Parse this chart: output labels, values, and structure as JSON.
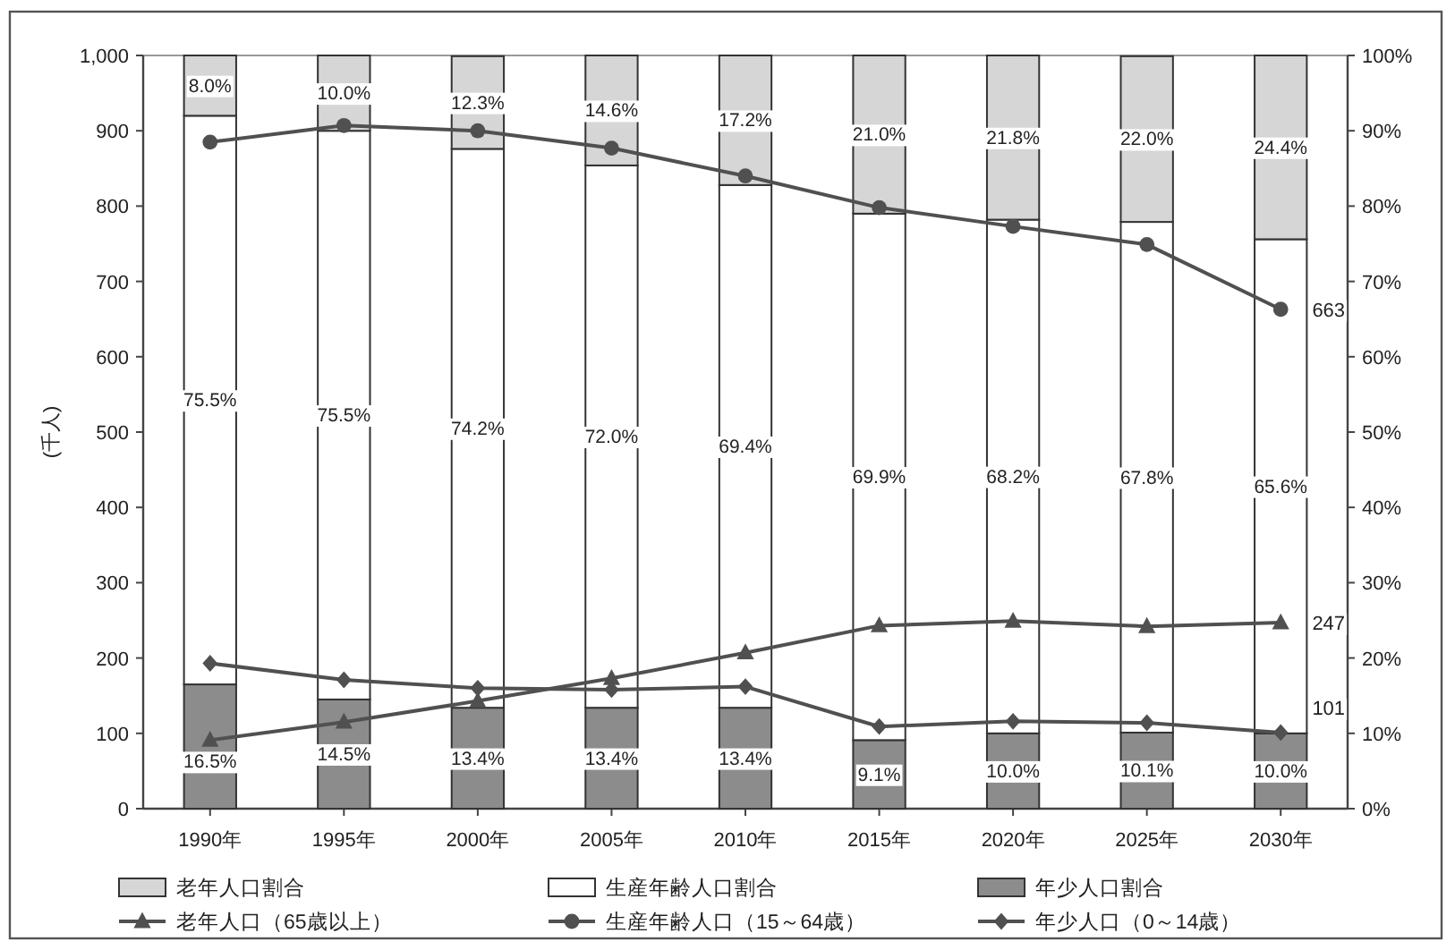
{
  "chart_data": {
    "type": "bar",
    "stacked": true,
    "categories": [
      "1990年",
      "1995年",
      "2000年",
      "2005年",
      "2010年",
      "2015年",
      "2020年",
      "2025年",
      "2030年"
    ],
    "ylabel": "(千人)",
    "ylim": [
      0,
      1000
    ],
    "yticks": [
      0,
      100,
      200,
      300,
      400,
      500,
      600,
      700,
      800,
      900,
      {
        "value": 1000,
        "label": "1,000"
      }
    ],
    "y2lim": [
      0,
      100
    ],
    "y2ticks": [
      {
        "value": 0,
        "label": "0%"
      },
      {
        "value": 10,
        "label": "10%"
      },
      {
        "value": 20,
        "label": "20%"
      },
      {
        "value": 30,
        "label": "30%"
      },
      {
        "value": 40,
        "label": "40%"
      },
      {
        "value": 50,
        "label": "50%"
      },
      {
        "value": 60,
        "label": "60%"
      },
      {
        "value": 70,
        "label": "70%"
      },
      {
        "value": 80,
        "label": "80%"
      },
      {
        "value": 90,
        "label": "90%"
      },
      {
        "value": 100,
        "label": "100%"
      }
    ],
    "legend": "bottom",
    "series": [
      {
        "name": "年少人口割合",
        "axis": "y2",
        "color": "#8c8c8c",
        "values": [
          16.5,
          14.5,
          13.4,
          13.4,
          13.4,
          9.1,
          10.0,
          10.1,
          10.0
        ],
        "value_labels": [
          "16.5%",
          "14.5%",
          "13.4%",
          "13.4%",
          "13.4%",
          "9.1%",
          "10.0%",
          "10.1%",
          "10.0%"
        ]
      },
      {
        "name": "生産年齢人口割合",
        "axis": "y2",
        "color": "#ffffff",
        "values": [
          75.5,
          75.5,
          74.2,
          72.0,
          69.4,
          69.9,
          68.2,
          67.8,
          65.6
        ],
        "value_labels": [
          "75.5%",
          "75.5%",
          "74.2%",
          "72.0%",
          "69.4%",
          "69.9%",
          "68.2%",
          "67.8%",
          "65.6%"
        ]
      },
      {
        "name": "老年人口割合",
        "axis": "y2",
        "color": "#d6d6d6",
        "values": [
          8.0,
          10.0,
          12.3,
          14.6,
          17.2,
          21.0,
          21.8,
          22.0,
          24.4
        ],
        "value_labels": [
          "8.0%",
          "10.0%",
          "12.3%",
          "14.6%",
          "17.2%",
          "21.0%",
          "21.8%",
          "22.0%",
          "24.4%"
        ]
      },
      {
        "name": "老年人口（65歳以上）",
        "type": "line",
        "marker": "triangle",
        "color": "#505050",
        "values": [
          91,
          115,
          143,
          173,
          207,
          243,
          249,
          242,
          247
        ],
        "value_labels": [
          null,
          null,
          null,
          null,
          null,
          null,
          null,
          null,
          "247"
        ]
      },
      {
        "name": "生産年齢人口（15～64歳）",
        "type": "line",
        "marker": "circle",
        "color": "#505050",
        "values": [
          885,
          907,
          900,
          877,
          840,
          798,
          773,
          749,
          663
        ],
        "value_labels": [
          null,
          null,
          null,
          null,
          null,
          null,
          null,
          null,
          "663"
        ]
      },
      {
        "name": "年少人口（0～14歳）",
        "type": "line",
        "marker": "diamond",
        "color": "#505050",
        "values": [
          193,
          171,
          160,
          158,
          162,
          109,
          116,
          114,
          101
        ],
        "value_labels": [
          null,
          null,
          null,
          null,
          null,
          null,
          null,
          null,
          "101"
        ]
      }
    ]
  }
}
